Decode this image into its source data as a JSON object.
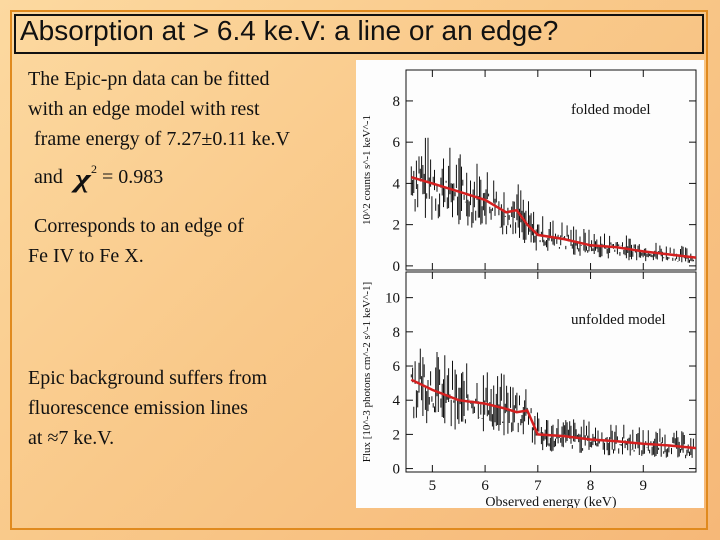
{
  "slide": {
    "title": "Absorption at > 6.4 ke.V: a line or an edge?",
    "paragraph1": {
      "line1": "The Epic-pn data can be fitted",
      "line2": "with an edge model with rest",
      "line3_prefix": "frame energy of 7.27",
      "pm_symbol": "±",
      "line3_suffix": "0.11 ke.V",
      "line4_prefix": "and",
      "chi_symbol": "χ",
      "chi_sup": "2",
      "line4_suffix": "= 0.983"
    },
    "paragraph2": {
      "line1": "Corresponds to an edge of",
      "line2": "Fe IV to Fe X."
    },
    "paragraph3": {
      "line1": "Epic background suffers from",
      "line2": "fluorescence emission lines",
      "line3_prefix": "at",
      "approx_symbol": "≈",
      "line3_suffix": "7 ke.V."
    }
  },
  "chart_data": [
    {
      "type": "line",
      "title": "folded model",
      "ylabel": "10^2 counts s^-1 keV^-1",
      "xlim": [
        4.5,
        10
      ],
      "ylim": [
        -0.2,
        9.5
      ],
      "yticks": [
        0,
        2,
        4,
        6,
        8
      ],
      "series": [
        {
          "x": [
            4.6,
            5.0,
            5.5,
            6.0,
            6.4,
            6.6,
            6.8,
            7.0,
            7.5,
            8.0,
            8.5,
            9.0,
            9.5,
            10.0
          ],
          "y": [
            4.3,
            4.0,
            3.6,
            3.2,
            2.6,
            2.7,
            2.0,
            1.5,
            1.3,
            1.0,
            0.9,
            0.7,
            0.55,
            0.4
          ]
        }
      ]
    },
    {
      "type": "line",
      "title": "unfolded model",
      "xlabel": "Observed energy (keV)",
      "ylabel": "Flux [10^-3 photons cm^-2 s^-1 keV^-1]",
      "xlim": [
        4.5,
        10
      ],
      "ylim": [
        -0.2,
        11.5
      ],
      "yticks": [
        0,
        2,
        4,
        6,
        8,
        10
      ],
      "xticks": [
        5,
        6,
        7,
        8,
        9
      ],
      "series": [
        {
          "x": [
            4.6,
            5.0,
            5.5,
            6.0,
            6.4,
            6.6,
            6.8,
            7.0,
            7.5,
            8.0,
            8.5,
            9.0,
            9.5,
            10.0
          ],
          "y": [
            5.2,
            4.6,
            4.0,
            3.8,
            3.5,
            3.3,
            3.4,
            2.0,
            1.9,
            1.7,
            1.6,
            1.45,
            1.35,
            1.2
          ]
        }
      ]
    }
  ],
  "colors": {
    "model_line": "#d42020",
    "data_line": "#111111",
    "border": "#e08a1e"
  }
}
